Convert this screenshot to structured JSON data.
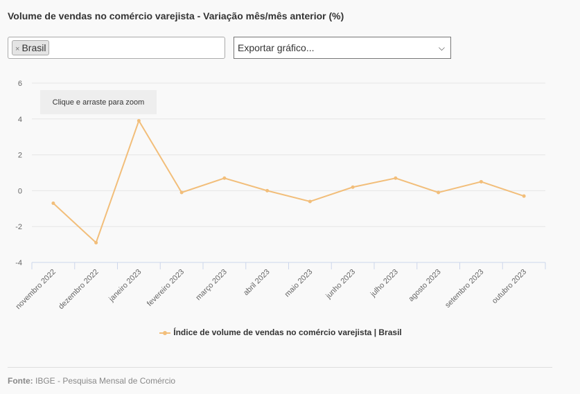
{
  "title": "Volume de vendas no comércio varejista - Variação mês/mês anterior (%)",
  "filter": {
    "tag": "Brasil",
    "remove": "×"
  },
  "export": {
    "label": "Exportar gráfico...",
    "chevron": "⌄"
  },
  "zoom_hint": "Clique e arraste para zoom",
  "source": {
    "label": "Fonte:",
    "text": " IBGE - Pesquisa Mensal de Comércio"
  },
  "chart_data": {
    "type": "line",
    "title": "Volume de vendas no comércio varejista - Variação mês/mês anterior (%)",
    "categories": [
      "novembro 2022",
      "dezembro 2022",
      "janeiro 2023",
      "fevereiro 2023",
      "março 2023",
      "abril 2023",
      "maio 2023",
      "junho 2023",
      "julho 2023",
      "agosto 2023",
      "setembro 2023",
      "outubro 2023"
    ],
    "series": [
      {
        "name": "Índice de volume de vendas no comércio varejista | Brasil",
        "color": "#f2be7a",
        "values": [
          -0.7,
          -2.9,
          3.9,
          -0.1,
          0.7,
          0.0,
          -0.6,
          0.2,
          0.7,
          -0.1,
          0.5,
          -0.3
        ]
      }
    ],
    "yticks": [
      6,
      4,
      2,
      0,
      -2,
      -4
    ],
    "ylim": [
      -4,
      6
    ],
    "grid": true,
    "legend": "bottom-center"
  }
}
